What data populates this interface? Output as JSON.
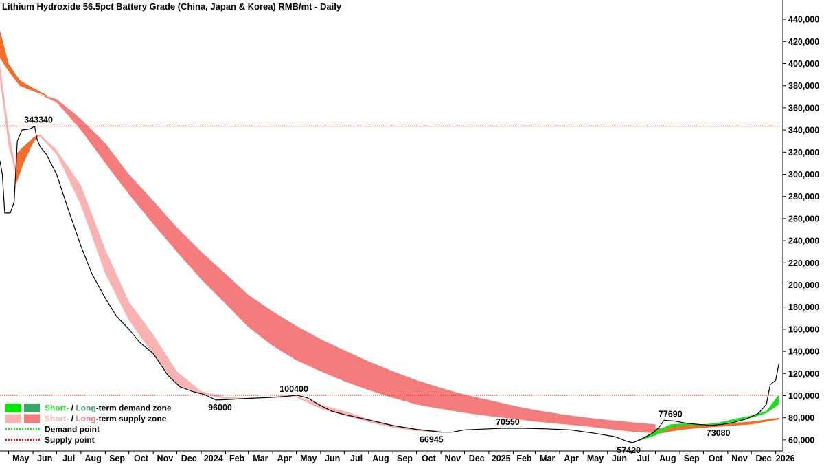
{
  "chart_data": {
    "type": "line",
    "title": "Lithium Hydroxide 56.5pct Battery Grade (China, Japan & Korea) RMB/mt - Daily",
    "ylim": [
      50000,
      450000
    ],
    "yticks": [
      60000,
      80000,
      100000,
      120000,
      140000,
      160000,
      180000,
      200000,
      220000,
      240000,
      260000,
      280000,
      300000,
      320000,
      340000,
      360000,
      380000,
      400000,
      420000,
      440000
    ],
    "ytick_labels": [
      "60,000",
      "80,000",
      "100,000",
      "120,000",
      "140,000",
      "160,000",
      "180,000",
      "200,000",
      "220,000",
      "240,000",
      "260,000",
      "280,000",
      "300,000",
      "320,000",
      "340,000",
      "360,000",
      "380,000",
      "400,000",
      "420,000",
      "440,000"
    ],
    "x_start": "2023-04-20",
    "x_end": "2026-01-10",
    "xticks": [
      {
        "date": "2023-05-01",
        "label": "May"
      },
      {
        "date": "2023-06-01",
        "label": "Jun"
      },
      {
        "date": "2023-07-01",
        "label": "Jul"
      },
      {
        "date": "2023-08-01",
        "label": "Aug"
      },
      {
        "date": "2023-09-01",
        "label": "Sep"
      },
      {
        "date": "2023-10-01",
        "label": "Oct"
      },
      {
        "date": "2023-11-01",
        "label": "Nov"
      },
      {
        "date": "2023-12-01",
        "label": "Dec"
      },
      {
        "date": "2024-01-01",
        "label": "2024"
      },
      {
        "date": "2024-02-01",
        "label": "Feb"
      },
      {
        "date": "2024-03-01",
        "label": "Mar"
      },
      {
        "date": "2024-04-01",
        "label": "Apr"
      },
      {
        "date": "2024-05-01",
        "label": "May"
      },
      {
        "date": "2024-06-01",
        "label": "Jun"
      },
      {
        "date": "2024-07-01",
        "label": "Jul"
      },
      {
        "date": "2024-08-01",
        "label": "Aug"
      },
      {
        "date": "2024-09-01",
        "label": "Sep"
      },
      {
        "date": "2024-10-01",
        "label": "Oct"
      },
      {
        "date": "2024-11-01",
        "label": "Nov"
      },
      {
        "date": "2024-12-01",
        "label": "Dec"
      },
      {
        "date": "2025-01-01",
        "label": "2025"
      },
      {
        "date": "2025-02-01",
        "label": "Feb"
      },
      {
        "date": "2025-03-01",
        "label": "Mar"
      },
      {
        "date": "2025-04-01",
        "label": "Apr"
      },
      {
        "date": "2025-05-01",
        "label": "May"
      },
      {
        "date": "2025-06-01",
        "label": "Jun"
      },
      {
        "date": "2025-07-01",
        "label": "Jul"
      },
      {
        "date": "2025-08-01",
        "label": "Aug"
      },
      {
        "date": "2025-09-01",
        "label": "Sep"
      },
      {
        "date": "2025-10-01",
        "label": "Oct"
      },
      {
        "date": "2025-11-01",
        "label": "Nov"
      },
      {
        "date": "2025-12-01",
        "label": "Dec"
      },
      {
        "date": "2026-01-01",
        "label": "2026"
      }
    ],
    "price_series": {
      "name": "Lithium Hydroxide price",
      "points": [
        [
          "2023-04-20",
          312000
        ],
        [
          "2023-04-23",
          300000
        ],
        [
          "2023-04-26",
          265000
        ],
        [
          "2023-05-03",
          265000
        ],
        [
          "2023-05-08",
          275000
        ],
        [
          "2023-05-12",
          330000
        ],
        [
          "2023-05-18",
          340000
        ],
        [
          "2023-05-28",
          341000
        ],
        [
          "2023-06-03",
          343340
        ],
        [
          "2023-06-06",
          332000
        ],
        [
          "2023-06-10",
          325000
        ],
        [
          "2023-06-18",
          318000
        ],
        [
          "2023-07-01",
          300000
        ],
        [
          "2023-07-15",
          270000
        ],
        [
          "2023-08-01",
          235000
        ],
        [
          "2023-08-15",
          210000
        ],
        [
          "2023-09-01",
          188000
        ],
        [
          "2023-09-15",
          172000
        ],
        [
          "2023-10-01",
          160000
        ],
        [
          "2023-10-15",
          148000
        ],
        [
          "2023-11-01",
          138000
        ],
        [
          "2023-11-20",
          118000
        ],
        [
          "2023-12-05",
          108000
        ],
        [
          "2023-12-20",
          104000
        ],
        [
          "2024-01-05",
          101000
        ],
        [
          "2024-01-20",
          96000
        ],
        [
          "2024-02-05",
          96500
        ],
        [
          "2024-03-01",
          97500
        ],
        [
          "2024-04-01",
          98500
        ],
        [
          "2024-04-20",
          99500
        ],
        [
          "2024-05-02",
          100400
        ],
        [
          "2024-05-15",
          98000
        ],
        [
          "2024-06-01",
          91000
        ],
        [
          "2024-06-15",
          86000
        ],
        [
          "2024-07-01",
          83000
        ],
        [
          "2024-08-01",
          78000
        ],
        [
          "2024-09-01",
          73000
        ],
        [
          "2024-10-01",
          69500
        ],
        [
          "2024-11-01",
          67000
        ],
        [
          "2024-11-15",
          66945
        ],
        [
          "2024-12-01",
          69000
        ],
        [
          "2025-01-01",
          70000
        ],
        [
          "2025-01-20",
          70550
        ],
        [
          "2025-02-15",
          70500
        ],
        [
          "2025-03-15",
          70000
        ],
        [
          "2025-04-15",
          69000
        ],
        [
          "2025-05-15",
          66000
        ],
        [
          "2025-06-10",
          63000
        ],
        [
          "2025-06-25",
          59000
        ],
        [
          "2025-07-03",
          57420
        ],
        [
          "2025-07-15",
          61000
        ],
        [
          "2025-07-28",
          66000
        ],
        [
          "2025-08-05",
          71000
        ],
        [
          "2025-08-12",
          77690
        ],
        [
          "2025-08-25",
          77000
        ],
        [
          "2025-09-10",
          75000
        ],
        [
          "2025-09-25",
          74000
        ],
        [
          "2025-10-10",
          73080
        ],
        [
          "2025-10-25",
          74000
        ],
        [
          "2025-11-10",
          76000
        ],
        [
          "2025-11-25",
          79000
        ],
        [
          "2025-12-10",
          84000
        ],
        [
          "2025-12-20",
          92000
        ],
        [
          "2025-12-25",
          110000
        ],
        [
          "2026-01-01",
          114000
        ],
        [
          "2026-01-05",
          129000
        ]
      ]
    },
    "long_term_supply_zone": {
      "color": "#f47c7c",
      "x": [
        "2023-06-10",
        "2023-07-01",
        "2023-08-01",
        "2023-09-01",
        "2023-10-01",
        "2023-11-01",
        "2023-12-01",
        "2024-01-01",
        "2024-02-01",
        "2024-03-01",
        "2024-04-01",
        "2024-05-01",
        "2024-06-01",
        "2024-07-01",
        "2024-08-01",
        "2024-09-01",
        "2024-10-01",
        "2024-11-01",
        "2024-12-01",
        "2025-01-01",
        "2025-02-01",
        "2025-03-01",
        "2025-04-01",
        "2025-05-01",
        "2025-06-01",
        "2025-07-01",
        "2025-08-01"
      ],
      "upper": [
        372000,
        368000,
        350000,
        328000,
        300000,
        276000,
        252000,
        230000,
        210000,
        191000,
        176000,
        163000,
        151000,
        141000,
        131000,
        122000,
        114000,
        107000,
        101000,
        96000,
        91000,
        87000,
        83500,
        80500,
        78000,
        76000,
        74000
      ],
      "lower": [
        372000,
        365000,
        340000,
        310000,
        282000,
        255000,
        230000,
        205000,
        183000,
        162000,
        145000,
        132000,
        122000,
        113000,
        105000,
        98000,
        92000,
        88000,
        84500,
        81500,
        79000,
        76500,
        74500,
        72500,
        70000,
        67500,
        66000
      ]
    },
    "short_term_supply_zone": {
      "color": "#f9b3b3",
      "x": [
        "2023-04-20",
        "2023-05-01",
        "2023-05-10",
        "2023-05-20",
        "2023-06-01",
        "2023-06-10",
        "2023-07-01",
        "2023-08-01",
        "2023-09-01",
        "2023-10-01",
        "2023-11-01",
        "2023-12-01",
        "2024-01-01",
        "2024-02-01",
        "2024-03-01",
        "2024-04-01",
        "2024-05-01",
        "2024-06-01",
        "2024-07-01",
        "2024-08-01",
        "2024-09-01",
        "2024-10-01",
        "2024-11-01"
      ],
      "upper": [
        400000,
        340000,
        305000,
        322000,
        333000,
        336000,
        322000,
        290000,
        232000,
        185000,
        155000,
        122000,
        104000,
        98500,
        98000,
        98500,
        99500,
        92000,
        86000,
        79000,
        73500,
        70000,
        68000
      ],
      "lower": [
        385000,
        325000,
        300000,
        318000,
        330000,
        334000,
        318000,
        272000,
        210000,
        168000,
        137000,
        110000,
        101500,
        97000,
        97000,
        98000,
        98500,
        88000,
        82000,
        76000,
        71000,
        68000,
        66500
      ]
    },
    "long_term_zone_early": {
      "color": "#f26e2a",
      "x": [
        "2023-04-20",
        "2023-05-01",
        "2023-05-15",
        "2023-06-01",
        "2023-06-20"
      ],
      "upper": [
        430000,
        400000,
        385000,
        378000,
        371000
      ],
      "lower": [
        405000,
        393000,
        380000,
        375000,
        370500
      ]
    },
    "early_orange_band": {
      "color": "#f26e2a",
      "x": [
        "2023-05-10",
        "2023-05-20",
        "2023-06-01",
        "2023-06-08"
      ],
      "upper": [
        318000,
        325000,
        333000,
        336000
      ],
      "lower": [
        290000,
        310000,
        328000,
        335000
      ]
    },
    "late_long_term_zone": {
      "color": "#f26e2a",
      "x": [
        "2025-08-01",
        "2025-09-01",
        "2025-10-01",
        "2025-11-01",
        "2025-12-01",
        "2026-01-05"
      ],
      "upper": [
        70000,
        73000,
        74000,
        75000,
        76500,
        80000
      ],
      "lower": [
        65000,
        69000,
        71000,
        72500,
        74000,
        78500
      ]
    },
    "late_demand_zone": {
      "color": "#22dd22",
      "x": [
        "2025-07-10",
        "2025-08-01",
        "2025-08-20",
        "2025-09-10",
        "2025-10-01",
        "2025-10-20",
        "2025-11-10",
        "2025-12-01",
        "2025-12-20",
        "2026-01-05"
      ],
      "upper": [
        60000,
        68000,
        74000,
        75000,
        74000,
        75500,
        79000,
        82000,
        86000,
        101000
      ],
      "lower": [
        59000,
        64000,
        71000,
        73000,
        73000,
        74000,
        76500,
        80000,
        84000,
        92000
      ]
    },
    "supply_points": [
      343340,
      100400
    ],
    "annotations": [
      {
        "label": "343340",
        "date": "2023-06-08",
        "value": 343340,
        "pos": "above"
      },
      {
        "label": "96000",
        "date": "2024-01-25",
        "value": 96000,
        "pos": "below"
      },
      {
        "label": "100400",
        "date": "2024-04-28",
        "value": 100400,
        "pos": "above"
      },
      {
        "label": "66945",
        "date": "2024-10-20",
        "value": 66945,
        "pos": "below"
      },
      {
        "label": "70550",
        "date": "2025-01-25",
        "value": 70550,
        "pos": "above"
      },
      {
        "label": "57420",
        "date": "2025-06-28",
        "value": 57420,
        "pos": "below"
      },
      {
        "label": "77690",
        "date": "2025-08-20",
        "value": 77690,
        "pos": "above"
      },
      {
        "label": "73080",
        "date": "2025-10-20",
        "value": 73080,
        "pos": "below"
      }
    ],
    "legend": {
      "placement": "bottom-left",
      "items": [
        {
          "kind": "zone",
          "swatches": [
            "#00e600",
            "#3aa66a"
          ],
          "parts": [
            {
              "text": "Short-",
              "color": "#22dd22"
            },
            {
              "text": " / ",
              "color": "#000000"
            },
            {
              "text": "Long",
              "color": "#3aa66a"
            },
            {
              "text": "-term demand zone",
              "color": "#000000"
            }
          ]
        },
        {
          "kind": "zone",
          "swatches": [
            "#f9b3b3",
            "#f47c7c"
          ],
          "parts": [
            {
              "text": "Short-",
              "color": "#f9b3b3"
            },
            {
              "text": " / ",
              "color": "#000000"
            },
            {
              "text": "Long",
              "color": "#f47c7c"
            },
            {
              "text": "-term supply zone",
              "color": "#000000"
            }
          ]
        },
        {
          "kind": "point",
          "line_color": "#22dd22",
          "parts": [
            {
              "text": "Demand point",
              "color": "#000000"
            }
          ]
        },
        {
          "kind": "point",
          "line_color": "#dd1111",
          "parts": [
            {
              "text": "Supply point",
              "color": "#000000"
            }
          ]
        }
      ]
    },
    "colors": {
      "price": "#000000",
      "supply_point": "#dd1111",
      "demand_point": "#22dd22",
      "axis": "#000000"
    }
  }
}
